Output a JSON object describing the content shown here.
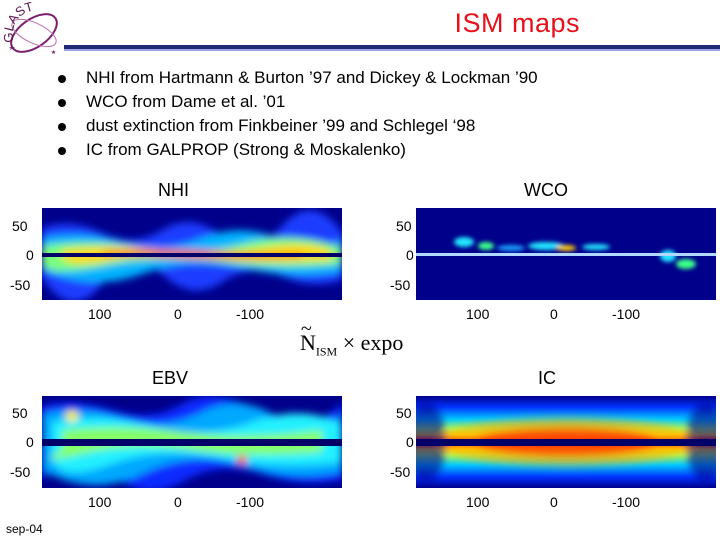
{
  "slide": {
    "title": "ISM maps",
    "footer": "sep-04"
  },
  "logo": {
    "text": "GLAST"
  },
  "bullets": [
    "NHI from Hartmann & Burton ’97 and Dickey & Lockman ’90",
    "WCO from Dame et al. ’01",
    "dust extinction from Finkbeiner ’99 and Schlegel ‘98",
    "IC from GALPROP (Strong & Moskalenko)"
  ],
  "maps": {
    "nhi": {
      "label": "NHI"
    },
    "wco": {
      "label": "WCO"
    },
    "ebv": {
      "label": "EBV"
    },
    "ic": {
      "label": "IC"
    },
    "y_ticks": [
      "50",
      "0",
      "-50"
    ],
    "x_ticks": [
      "100",
      "0",
      "-100"
    ]
  },
  "formula": {
    "symbol": "N",
    "tilde": "~",
    "subscript": "ISM",
    "rest": " × expo"
  },
  "colors": {
    "title": "#e8101a",
    "rule": "#1e2a78",
    "map_background": "#00008b"
  }
}
